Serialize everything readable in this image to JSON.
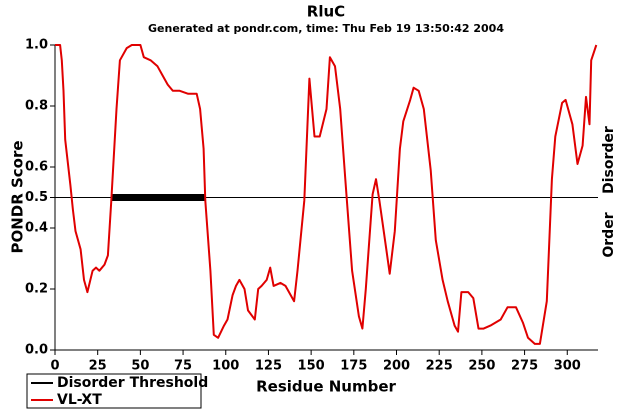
{
  "chart_data": {
    "type": "line",
    "title": "RluC",
    "subtitle": "Generated at pondr.com, time: Thu Feb 19 13:50:42 2004",
    "x_label": "Residue Number",
    "y_label": "PONDR Score",
    "annotations": [
      "Disorder",
      "Order"
    ],
    "xlim": [
      0,
      318
    ],
    "ylim": [
      0,
      1
    ],
    "xticks": [
      0,
      25,
      50,
      75,
      100,
      125,
      150,
      175,
      200,
      225,
      250,
      275,
      300
    ],
    "yticks": [
      {
        "value": 0,
        "label": "0.0"
      },
      0.2,
      0.4,
      0.5,
      0.6,
      0.8,
      {
        "value": 1,
        "label": "1.0"
      }
    ],
    "threshold": {
      "name": "Disorder Threshold",
      "value": 0.5,
      "color": "#000000"
    },
    "disorder_regions": [
      {
        "start": 33,
        "end": 88
      }
    ],
    "legend": "bottom-left",
    "series": [
      {
        "name": "VL-XT",
        "color": "#e00000",
        "x": [
          0,
          3,
          4,
          5,
          6,
          9,
          10.5,
          12,
          15,
          17,
          19,
          22,
          24,
          26,
          29,
          31,
          33,
          36,
          38,
          42,
          45,
          50,
          52,
          56,
          60,
          63,
          66,
          69,
          73,
          78,
          83,
          85,
          87,
          88,
          91,
          93,
          95.5,
          99,
          101,
          104,
          106,
          108,
          111,
          113,
          117,
          119,
          121,
          124,
          126,
          128,
          132,
          135,
          140,
          142,
          146,
          149,
          152,
          155,
          159,
          161,
          164,
          167,
          170,
          174,
          178,
          180,
          182,
          186,
          188,
          190,
          194,
          196,
          199,
          202,
          204,
          208,
          210,
          213,
          216,
          220,
          223,
          227,
          230,
          234,
          236,
          238,
          242,
          245,
          248,
          251,
          255,
          261,
          265,
          270,
          274,
          277,
          281,
          284,
          288,
          291,
          293,
          297,
          299,
          303,
          306,
          309,
          311,
          313,
          314,
          317
        ],
        "values": [
          1.0,
          1.0,
          0.95,
          0.85,
          0.69,
          0.54,
          0.46,
          0.39,
          0.33,
          0.23,
          0.19,
          0.26,
          0.27,
          0.26,
          0.28,
          0.31,
          0.49,
          0.79,
          0.95,
          0.99,
          1.0,
          1.0,
          0.96,
          0.95,
          0.93,
          0.9,
          0.87,
          0.85,
          0.85,
          0.84,
          0.84,
          0.79,
          0.66,
          0.49,
          0.26,
          0.05,
          0.04,
          0.08,
          0.1,
          0.18,
          0.21,
          0.23,
          0.2,
          0.13,
          0.1,
          0.2,
          0.21,
          0.23,
          0.27,
          0.21,
          0.22,
          0.21,
          0.16,
          0.26,
          0.49,
          0.89,
          0.7,
          0.7,
          0.79,
          0.96,
          0.93,
          0.79,
          0.56,
          0.26,
          0.11,
          0.07,
          0.2,
          0.51,
          0.56,
          0.49,
          0.33,
          0.25,
          0.39,
          0.66,
          0.75,
          0.82,
          0.86,
          0.85,
          0.79,
          0.59,
          0.36,
          0.23,
          0.16,
          0.08,
          0.06,
          0.19,
          0.19,
          0.17,
          0.07,
          0.07,
          0.08,
          0.1,
          0.14,
          0.14,
          0.09,
          0.04,
          0.02,
          0.02,
          0.16,
          0.56,
          0.7,
          0.81,
          0.82,
          0.74,
          0.61,
          0.67,
          0.83,
          0.74,
          0.95,
          1.0
        ]
      }
    ]
  }
}
